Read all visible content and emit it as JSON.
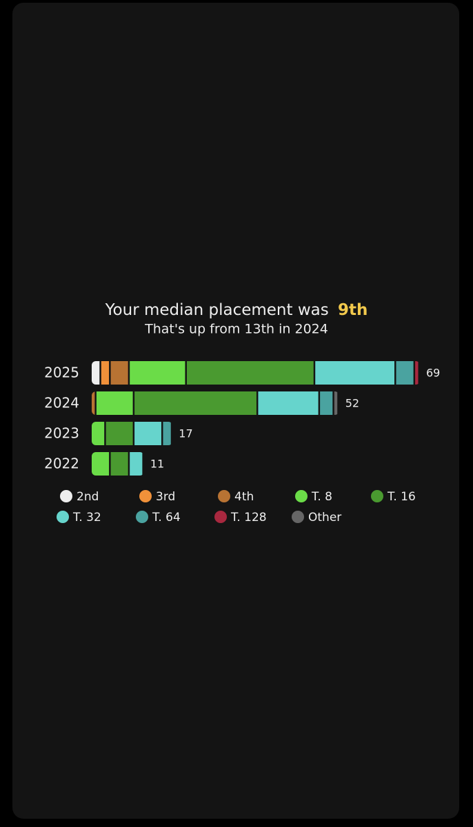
{
  "chart_data": {
    "type": "stacked_bar_horizontal",
    "title": "Your median placement was",
    "title_highlight": "9th",
    "subtitle": "That's up from 13th in 2024",
    "highlight_color": "#f2c94c",
    "highlight_index": 0,
    "categories": [
      "2025",
      "2024",
      "2023",
      "2022"
    ],
    "totals": [
      69,
      52,
      17,
      11
    ],
    "series": [
      {
        "name": "2nd",
        "color": "#eeeeee",
        "values": [
          2,
          0,
          0,
          0
        ]
      },
      {
        "name": "3rd",
        "color": "#f0913a",
        "values": [
          2,
          0,
          0,
          0
        ]
      },
      {
        "name": "4th",
        "color": "#b87333",
        "values": [
          4,
          1,
          0,
          0
        ]
      },
      {
        "name": "T. 8",
        "color": "#6bdc48",
        "values": [
          12,
          8,
          3,
          4
        ]
      },
      {
        "name": "T. 16",
        "color": "#4a9a30",
        "values": [
          27,
          26,
          6,
          4
        ]
      },
      {
        "name": "T. 32",
        "color": "#66d4cc",
        "values": [
          17,
          13,
          6,
          3
        ]
      },
      {
        "name": "T. 64",
        "color": "#4aa3a0",
        "values": [
          4,
          3,
          2,
          0
        ]
      },
      {
        "name": "T. 128",
        "color": "#a8283f",
        "values": [
          1,
          0,
          0,
          0
        ]
      },
      {
        "name": "Other",
        "color": "#666666",
        "values": [
          0,
          1,
          0,
          0
        ]
      }
    ]
  }
}
